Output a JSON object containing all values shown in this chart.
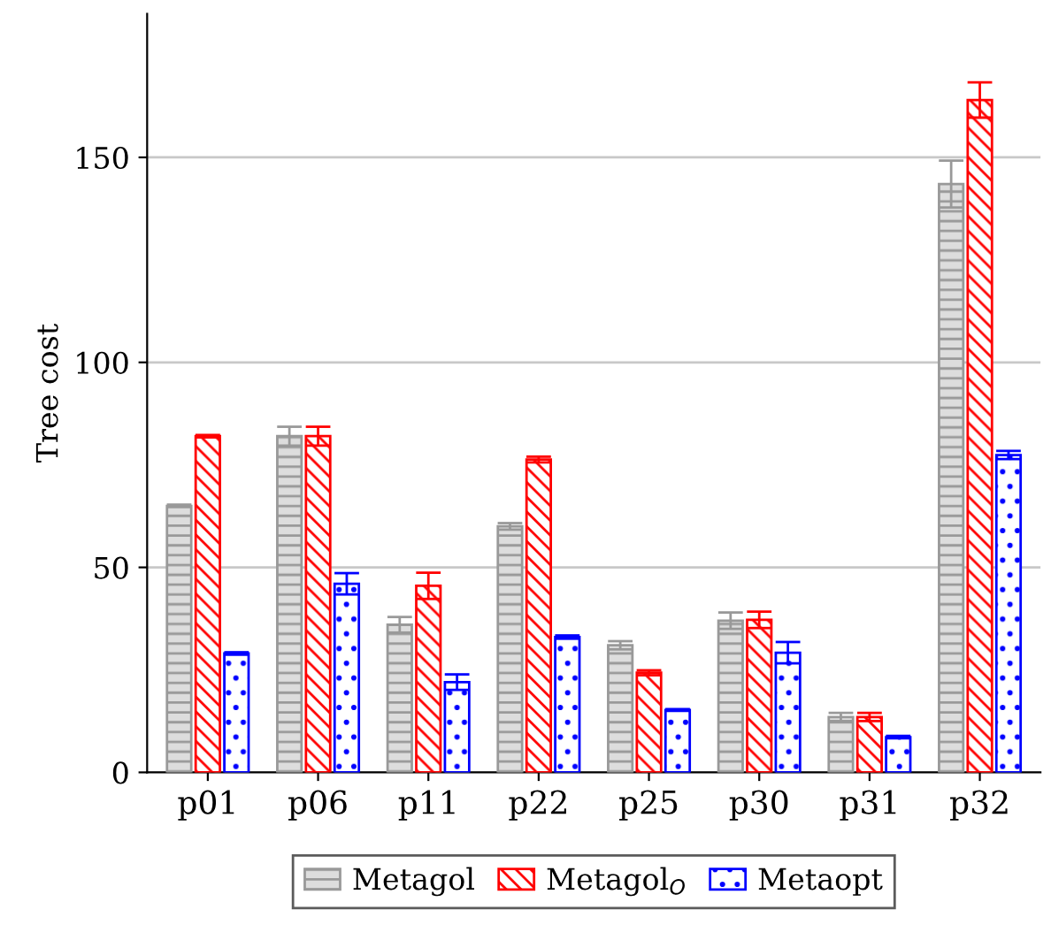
{
  "chart_data": {
    "type": "bar",
    "ylabel": "Tree cost",
    "categories": [
      "p01",
      "p06",
      "p11",
      "p22",
      "p25",
      "p30",
      "p31",
      "p32"
    ],
    "series": [
      {
        "name": "Metagol",
        "color": "#999999",
        "values": [
          65,
          82,
          36,
          60,
          31,
          37,
          13.5,
          143.5
        ],
        "errors": [
          0.3,
          2.3,
          1.9,
          0.8,
          1,
          2,
          1,
          5.7
        ]
      },
      {
        "name": "Metagol$_{O}$",
        "color": "#ff0000",
        "values": [
          82,
          82,
          45.5,
          76.3,
          24.3,
          37.2,
          13.5,
          164
        ],
        "errors": [
          0.3,
          2.3,
          3.2,
          0.7,
          0.6,
          2,
          1,
          4.3
        ]
      },
      {
        "name": "Metaopt",
        "color": "#0000ff",
        "values": [
          29,
          46,
          22,
          33,
          15.2,
          29.2,
          8.6,
          77.4
        ],
        "errors": [
          0.3,
          2.6,
          1.9,
          0.4,
          0.2,
          2.6,
          0.3,
          1
        ]
      }
    ],
    "ylim": [
      0,
      185
    ],
    "yticks": [
      0,
      50,
      100,
      150
    ],
    "grid": "y",
    "legend": "bottom"
  }
}
